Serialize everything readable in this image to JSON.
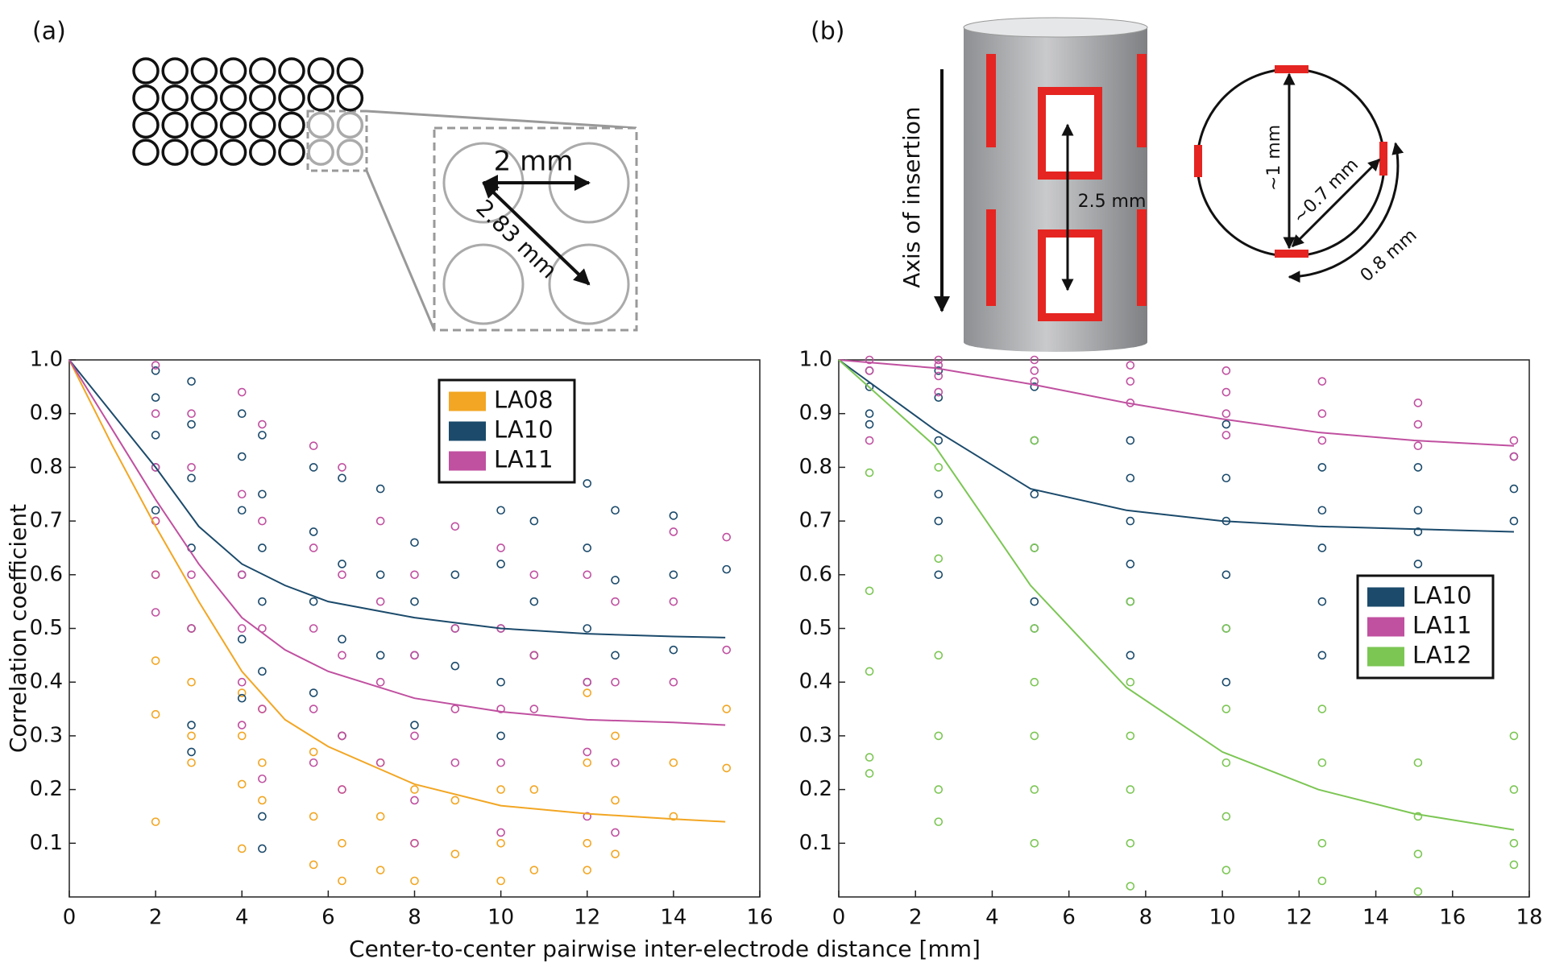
{
  "chart_data": [
    {
      "type": "scatter",
      "ylabel": "Correlation coefficient",
      "xlim": [
        0,
        16
      ],
      "ylim": [
        0,
        1
      ],
      "xticks": [
        0,
        2,
        4,
        6,
        8,
        10,
        12,
        14,
        16
      ],
      "yticks": [
        0.1,
        0.2,
        0.3,
        0.4,
        0.5,
        0.6,
        0.7,
        0.8,
        0.9,
        {
          "value": 1,
          "label": "1.0"
        }
      ],
      "legend": "upper right",
      "series": [
        {
          "name": "LA08",
          "color": "#f2a623",
          "x": [
            2,
            2,
            2,
            2,
            2,
            2.83,
            2.83,
            2.83,
            2.83,
            4,
            4,
            4,
            4,
            4.47,
            4.47,
            4.47,
            5.66,
            5.66,
            5.66,
            6.32,
            6.32,
            6.32,
            6.32,
            7.21,
            7.21,
            7.21,
            8,
            8,
            8,
            8.94,
            8.94,
            10,
            10,
            10,
            10.77,
            10.77,
            10.77,
            12,
            12,
            12,
            12,
            12.65,
            12.65,
            12.65,
            14,
            14,
            15.23,
            15.23
          ],
          "y": [
            0.7,
            0.6,
            0.44,
            0.34,
            0.14,
            0.5,
            0.4,
            0.3,
            0.25,
            0.38,
            0.3,
            0.21,
            0.09,
            0.35,
            0.25,
            0.18,
            0.27,
            0.15,
            0.06,
            0.3,
            0.2,
            0.1,
            0.03,
            0.25,
            0.15,
            0.05,
            0.2,
            0.1,
            0.03,
            0.18,
            0.08,
            0.2,
            0.1,
            0.03,
            0.45,
            0.2,
            0.05,
            0.38,
            0.25,
            0.1,
            0.05,
            0.3,
            0.18,
            0.08,
            0.25,
            0.15,
            0.35,
            0.24
          ],
          "fit_x": [
            0,
            1,
            2,
            3,
            4,
            5,
            6,
            8,
            10,
            12,
            14,
            15.2
          ],
          "fit_y": [
            1,
            0.84,
            0.69,
            0.55,
            0.42,
            0.33,
            0.28,
            0.21,
            0.17,
            0.155,
            0.145,
            0.14
          ]
        },
        {
          "name": "LA10",
          "color": "#1b4a6b",
          "x": [
            2,
            2,
            2,
            2,
            2,
            2.83,
            2.83,
            2.83,
            2.83,
            2.83,
            2.83,
            2.83,
            4,
            4,
            4,
            4,
            4,
            4,
            4.47,
            4.47,
            4.47,
            4.47,
            4.47,
            4.47,
            4.47,
            5.66,
            5.66,
            5.66,
            5.66,
            6.32,
            6.32,
            6.32,
            6.32,
            7.21,
            7.21,
            7.21,
            8,
            8,
            8,
            8,
            8.94,
            8.94,
            8.94,
            10,
            10,
            10,
            10,
            10,
            10.77,
            10.77,
            10.77,
            12,
            12,
            12,
            12,
            12.65,
            12.65,
            12.65,
            14,
            14,
            14,
            15.23
          ],
          "y": [
            0.98,
            0.93,
            0.86,
            0.8,
            0.72,
            0.96,
            0.88,
            0.78,
            0.65,
            0.5,
            0.32,
            0.27,
            0.9,
            0.82,
            0.72,
            0.6,
            0.48,
            0.37,
            0.86,
            0.75,
            0.65,
            0.55,
            0.42,
            0.15,
            0.09,
            0.8,
            0.68,
            0.55,
            0.38,
            0.78,
            0.62,
            0.48,
            0.3,
            0.76,
            0.6,
            0.45,
            0.66,
            0.55,
            0.45,
            0.32,
            0.6,
            0.5,
            0.43,
            0.72,
            0.62,
            0.5,
            0.4,
            0.3,
            0.7,
            0.55,
            0.45,
            0.77,
            0.65,
            0.5,
            0.4,
            0.72,
            0.59,
            0.45,
            0.71,
            0.6,
            0.46,
            0.61
          ],
          "fit_x": [
            0,
            1,
            2,
            3,
            4,
            5,
            6,
            8,
            10,
            12,
            14,
            15.2
          ],
          "fit_y": [
            1,
            0.9,
            0.8,
            0.69,
            0.62,
            0.58,
            0.55,
            0.52,
            0.5,
            0.49,
            0.485,
            0.483
          ]
        },
        {
          "name": "LA11",
          "color": "#c050a0",
          "x": [
            2,
            2,
            2,
            2,
            2,
            2,
            2.83,
            2.83,
            2.83,
            2.83,
            4,
            4,
            4,
            4,
            4,
            4,
            4.47,
            4.47,
            4.47,
            4.47,
            4.47,
            5.66,
            5.66,
            5.66,
            5.66,
            5.66,
            6.32,
            6.32,
            6.32,
            6.32,
            6.32,
            7.21,
            7.21,
            7.21,
            7.21,
            8,
            8,
            8,
            8,
            8,
            8.94,
            8.94,
            8.94,
            8.94,
            10,
            10,
            10,
            10,
            10,
            10.77,
            10.77,
            10.77,
            12,
            12,
            12,
            12,
            12.65,
            12.65,
            12.65,
            12.65,
            14,
            14,
            14,
            15.23,
            15.23
          ],
          "y": [
            0.99,
            0.9,
            0.8,
            0.7,
            0.6,
            0.53,
            0.9,
            0.8,
            0.6,
            0.5,
            0.94,
            0.75,
            0.6,
            0.5,
            0.4,
            0.32,
            0.88,
            0.7,
            0.5,
            0.35,
            0.22,
            0.84,
            0.65,
            0.5,
            0.35,
            0.25,
            0.8,
            0.6,
            0.45,
            0.3,
            0.2,
            0.7,
            0.55,
            0.4,
            0.25,
            0.6,
            0.45,
            0.3,
            0.18,
            0.1,
            0.69,
            0.5,
            0.35,
            0.25,
            0.65,
            0.5,
            0.35,
            0.25,
            0.12,
            0.6,
            0.45,
            0.35,
            0.6,
            0.4,
            0.27,
            0.15,
            0.55,
            0.4,
            0.25,
            0.12,
            0.68,
            0.55,
            0.4,
            0.67,
            0.46
          ],
          "fit_x": [
            0,
            1,
            2,
            3,
            4,
            5,
            6,
            8,
            10,
            12,
            14,
            15.2
          ],
          "fit_y": [
            1,
            0.87,
            0.74,
            0.62,
            0.52,
            0.46,
            0.42,
            0.37,
            0.345,
            0.33,
            0.325,
            0.32
          ]
        }
      ]
    },
    {
      "type": "scatter",
      "xlim": [
        0,
        18
      ],
      "ylim": [
        0,
        1
      ],
      "xticks": [
        0,
        2,
        4,
        6,
        8,
        10,
        12,
        14,
        16,
        18
      ],
      "yticks": [
        0.1,
        0.2,
        0.3,
        0.4,
        0.5,
        0.6,
        0.7,
        0.8,
        0.9,
        {
          "value": 1,
          "label": "1.0"
        }
      ],
      "legend": "right",
      "series": [
        {
          "name": "LA10",
          "color": "#1b4a6b",
          "x": [
            0.8,
            0.8,
            0.8,
            0.8,
            2.6,
            2.6,
            2.6,
            2.6,
            2.6,
            2.6,
            5.1,
            5.1,
            5.1,
            5.1,
            5.1,
            5.1,
            7.6,
            7.6,
            7.6,
            7.6,
            7.6,
            7.6,
            10.1,
            10.1,
            10.1,
            10.1,
            10.1,
            10.1,
            12.6,
            12.6,
            12.6,
            12.6,
            12.6,
            15.1,
            15.1,
            15.1,
            15.1,
            17.6,
            17.6,
            17.6
          ],
          "y": [
            0.98,
            0.95,
            0.9,
            0.88,
            0.98,
            0.93,
            0.85,
            0.75,
            0.7,
            0.6,
            0.95,
            0.85,
            0.75,
            0.65,
            0.55,
            0.5,
            0.85,
            0.78,
            0.7,
            0.62,
            0.55,
            0.45,
            0.88,
            0.78,
            0.7,
            0.6,
            0.5,
            0.4,
            0.8,
            0.72,
            0.65,
            0.55,
            0.45,
            0.8,
            0.72,
            0.68,
            0.62,
            0.82,
            0.76,
            0.7
          ],
          "fit_x": [
            0,
            2.5,
            5,
            7.5,
            10,
            12.5,
            15,
            17.6
          ],
          "fit_y": [
            1,
            0.87,
            0.76,
            0.72,
            0.7,
            0.69,
            0.685,
            0.68
          ]
        },
        {
          "name": "LA11",
          "color": "#c050a0",
          "x": [
            0.8,
            0.8,
            0.8,
            2.6,
            2.6,
            2.6,
            2.6,
            5.1,
            5.1,
            5.1,
            7.6,
            7.6,
            7.6,
            10.1,
            10.1,
            10.1,
            10.1,
            12.6,
            12.6,
            12.6,
            15.1,
            15.1,
            15.1,
            17.6,
            17.6
          ],
          "y": [
            1,
            0.98,
            0.85,
            1,
            0.99,
            0.97,
            0.94,
            1,
            0.98,
            0.96,
            0.99,
            0.96,
            0.92,
            0.98,
            0.94,
            0.9,
            0.86,
            0.96,
            0.9,
            0.85,
            0.92,
            0.88,
            0.84,
            0.85,
            0.82
          ],
          "fit_x": [
            0,
            2.5,
            5,
            7.5,
            10,
            12.5,
            15,
            17.6
          ],
          "fit_y": [
            1,
            0.985,
            0.955,
            0.92,
            0.89,
            0.865,
            0.85,
            0.84
          ]
        },
        {
          "name": "LA12",
          "color": "#7cc654",
          "x": [
            0.8,
            0.8,
            0.8,
            0.8,
            0.8,
            2.6,
            2.6,
            2.6,
            2.6,
            2.6,
            2.6,
            5.1,
            5.1,
            5.1,
            5.1,
            5.1,
            5.1,
            5.1,
            7.6,
            7.6,
            7.6,
            7.6,
            7.6,
            7.6,
            10.1,
            10.1,
            10.1,
            10.1,
            10.1,
            12.6,
            12.6,
            12.6,
            12.6,
            15.1,
            15.1,
            15.1,
            15.1,
            17.6,
            17.6,
            17.6,
            17.6
          ],
          "y": [
            0.79,
            0.57,
            0.42,
            0.26,
            0.23,
            0.8,
            0.63,
            0.45,
            0.3,
            0.2,
            0.14,
            0.85,
            0.65,
            0.5,
            0.4,
            0.3,
            0.2,
            0.1,
            0.55,
            0.4,
            0.3,
            0.2,
            0.1,
            0.02,
            0.5,
            0.35,
            0.25,
            0.15,
            0.05,
            0.35,
            0.25,
            0.1,
            0.03,
            0.25,
            0.15,
            0.08,
            0.01,
            0.3,
            0.2,
            0.1,
            0.06
          ],
          "fit_x": [
            0,
            2.5,
            5,
            7.5,
            10,
            12.5,
            15,
            17.6
          ],
          "fit_y": [
            1,
            0.84,
            0.58,
            0.39,
            0.27,
            0.2,
            0.155,
            0.125
          ]
        }
      ]
    }
  ],
  "figure": {
    "xlabel": "Center-to-center pairwise inter-electrode distance [mm]"
  },
  "diagram_a": {
    "label": "(a)",
    "spacing": "2 mm",
    "diagonal": "2.83 mm"
  },
  "diagram_b": {
    "label": "(b)",
    "axis": "Axis of insertion",
    "spacing": "2.5 mm",
    "diameter": "~1 mm",
    "chord": "~0.7 mm",
    "arc": "0.8 mm"
  }
}
